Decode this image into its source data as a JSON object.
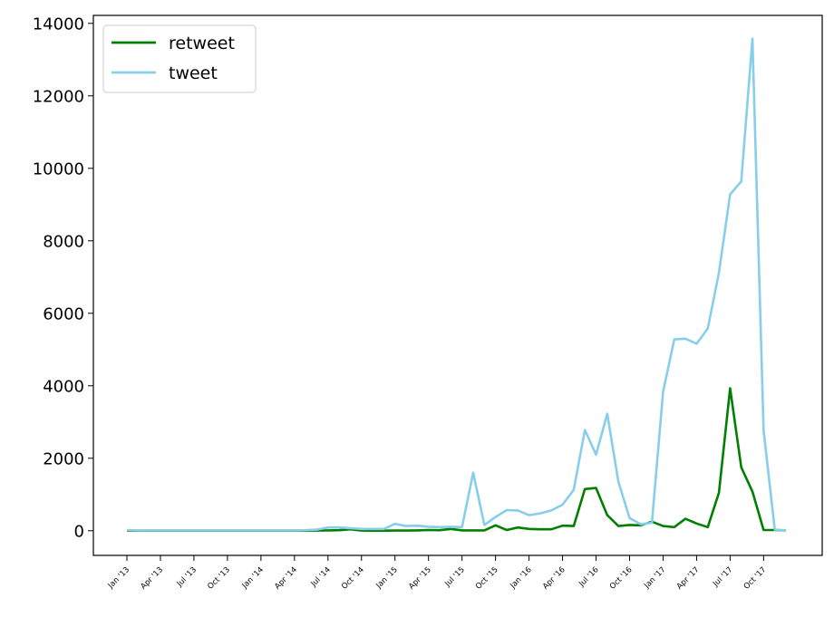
{
  "chart_data": {
    "type": "line",
    "title": "",
    "xlabel": "",
    "ylabel": "",
    "x": [
      "2013-01",
      "2013-02",
      "2013-03",
      "2013-04",
      "2013-05",
      "2013-06",
      "2013-07",
      "2013-08",
      "2013-09",
      "2013-10",
      "2013-11",
      "2013-12",
      "2014-01",
      "2014-02",
      "2014-03",
      "2014-04",
      "2014-05",
      "2014-06",
      "2014-07",
      "2014-08",
      "2014-09",
      "2014-10",
      "2014-11",
      "2014-12",
      "2015-01",
      "2015-02",
      "2015-03",
      "2015-04",
      "2015-05",
      "2015-06",
      "2015-07",
      "2015-08",
      "2015-09",
      "2015-10",
      "2015-11",
      "2015-12",
      "2016-01",
      "2016-02",
      "2016-03",
      "2016-04",
      "2016-05",
      "2016-06",
      "2016-07",
      "2016-08",
      "2016-09",
      "2016-10",
      "2016-11",
      "2016-12",
      "2017-01",
      "2017-02",
      "2017-03",
      "2017-04",
      "2017-05",
      "2017-06",
      "2017-07",
      "2017-08",
      "2017-09",
      "2017-10",
      "2017-11",
      "2017-12"
    ],
    "series": [
      {
        "name": "retweet",
        "color": "#008000",
        "values": [
          5,
          3,
          2,
          2,
          2,
          2,
          3,
          2,
          2,
          2,
          2,
          2,
          2,
          2,
          2,
          2,
          3,
          5,
          8,
          15,
          40,
          5,
          2,
          2,
          5,
          5,
          10,
          20,
          15,
          50,
          10,
          10,
          10,
          150,
          20,
          90,
          50,
          40,
          40,
          140,
          130,
          1150,
          1180,
          430,
          130,
          160,
          150,
          250,
          130,
          100,
          330,
          200,
          100,
          1050,
          3930,
          1750,
          1080,
          20,
          20,
          10
        ]
      },
      {
        "name": "tweet",
        "color": "#87CEEB",
        "values": [
          20,
          10,
          10,
          10,
          10,
          10,
          10,
          10,
          10,
          10,
          10,
          10,
          10,
          10,
          10,
          10,
          15,
          30,
          90,
          90,
          70,
          50,
          50,
          50,
          190,
          130,
          140,
          110,
          100,
          110,
          100,
          1600,
          160,
          380,
          570,
          560,
          430,
          480,
          560,
          720,
          1130,
          2780,
          2100,
          3230,
          1350,
          350,
          180,
          220,
          3830,
          5280,
          5300,
          5160,
          5580,
          7120,
          9280,
          9640,
          13580,
          2760,
          30,
          10
        ]
      }
    ],
    "ylim": [
      -680,
      14220
    ],
    "yticks": [
      0,
      2000,
      4000,
      6000,
      8000,
      10000,
      12000,
      14000
    ],
    "ytick_labels": [
      "0",
      "2000",
      "4000",
      "6000",
      "8000",
      "10000",
      "12000",
      "14000"
    ],
    "xticks": [
      "2013-01",
      "2013-04",
      "2013-07",
      "2013-10",
      "2014-01",
      "2014-04",
      "2014-07",
      "2014-10",
      "2015-01",
      "2015-04",
      "2015-07",
      "2015-10",
      "2016-01",
      "2016-04",
      "2016-07",
      "2016-10",
      "2017-01",
      "2017-04",
      "2017-07",
      "2017-10"
    ],
    "xtick_labels": [
      "Jan '13",
      "Apr '13",
      "Jul '13",
      "Oct '13",
      "Jan '14",
      "Apr '14",
      "Jul '14",
      "Oct '14",
      "Jan '15",
      "Apr '15",
      "Jul '15",
      "Oct '15",
      "Jan '16",
      "Apr '16",
      "Jul '16",
      "Oct '16",
      "Jan '17",
      "Apr '17",
      "Jul '17",
      "Oct '17"
    ],
    "grid": false,
    "legend": "top-left"
  }
}
